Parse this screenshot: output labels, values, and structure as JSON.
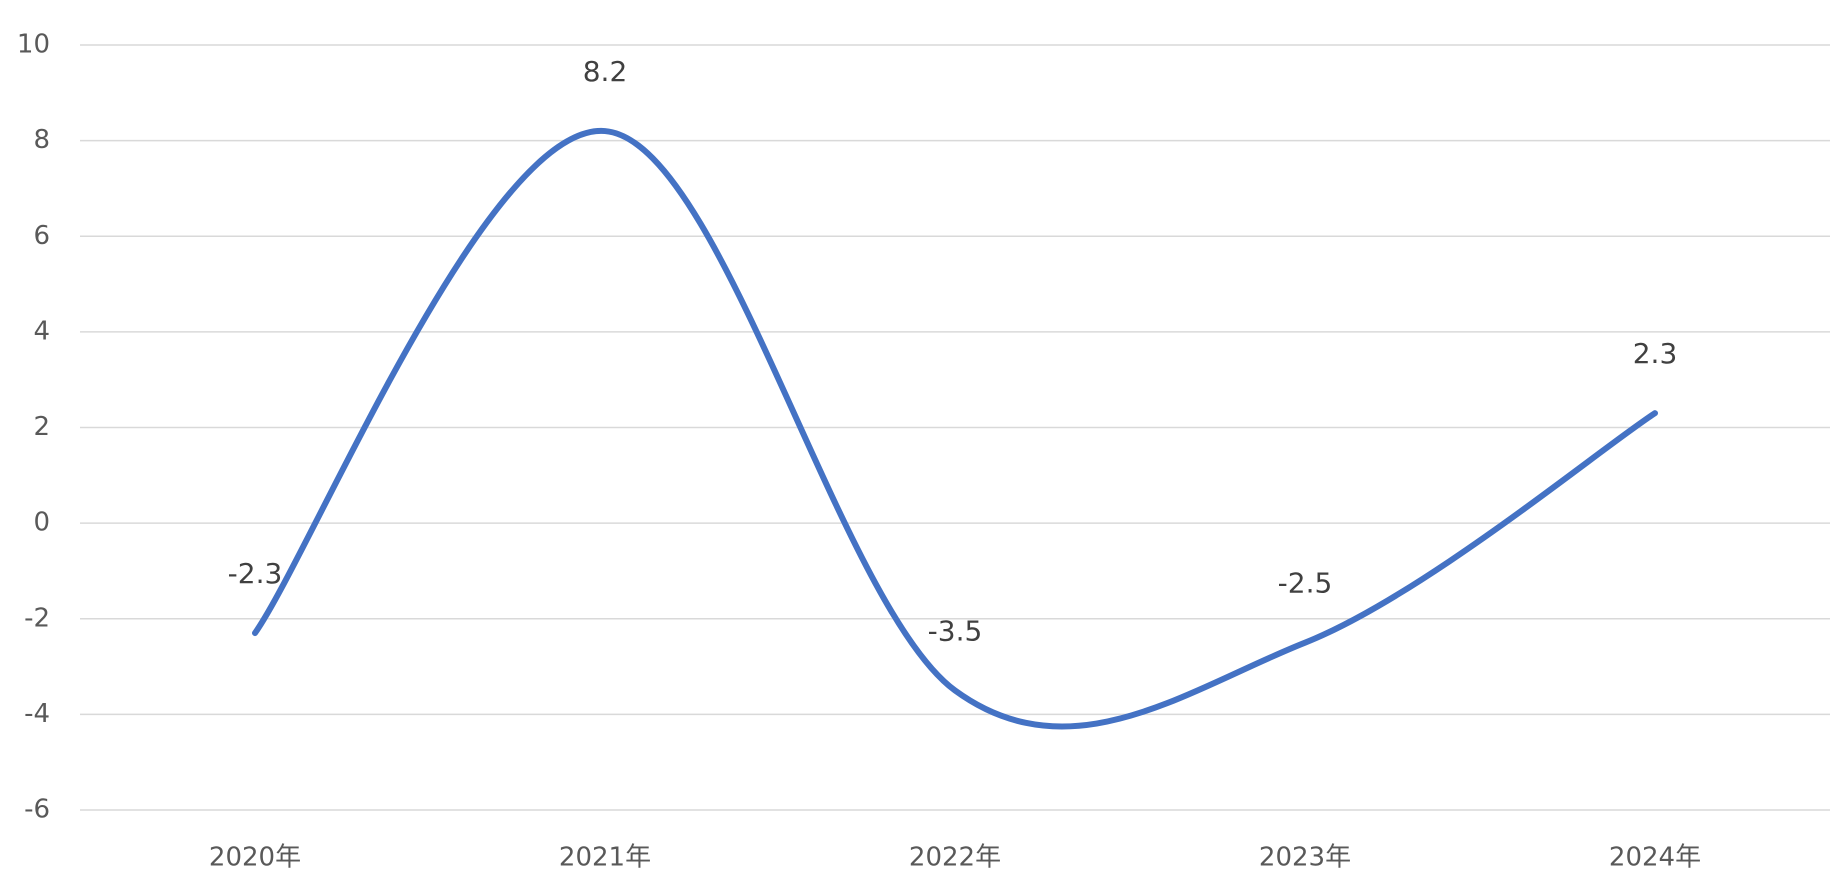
{
  "chart_data": {
    "type": "line",
    "categories": [
      "2020年",
      "2021年",
      "2022年",
      "2023年",
      "2024年"
    ],
    "values": [
      -2.3,
      8.2,
      -3.5,
      -2.5,
      2.3
    ],
    "color": "#4472c4",
    "smooth": true,
    "ylim": [
      -6,
      10
    ],
    "yticks": [
      -6,
      -4,
      -2,
      0,
      2,
      4,
      6,
      8,
      10
    ],
    "grid": true
  }
}
